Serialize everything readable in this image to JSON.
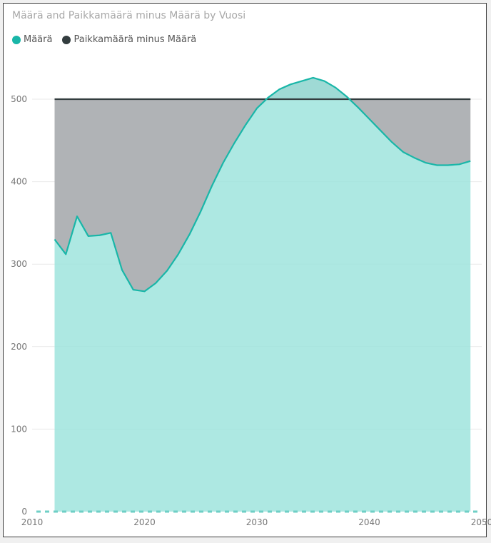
{
  "colors": {
    "maara": "#19b6a8",
    "maara_fill": "#9be3dc",
    "paikka": "#333d3f",
    "gap_fill": "#b0b3b6",
    "grid": "#e9e9e9"
  },
  "chart_data": {
    "type": "area",
    "title": "Määrä and Paikkamäärä minus Määrä by Vuosi",
    "legend_position": "top-left",
    "grid": true,
    "xlim": [
      2010,
      2050
    ],
    "ylim": [
      0,
      500
    ],
    "x_ticks": [
      2010,
      2020,
      2030,
      2040,
      2050
    ],
    "y_ticks": [
      0,
      100,
      200,
      300,
      400,
      500
    ],
    "x": [
      2012,
      2013,
      2014,
      2015,
      2016,
      2017,
      2018,
      2019,
      2020,
      2021,
      2022,
      2023,
      2024,
      2025,
      2026,
      2027,
      2028,
      2029,
      2030,
      2031,
      2032,
      2033,
      2034,
      2035,
      2036,
      2037,
      2038,
      2039,
      2040,
      2041,
      2042,
      2043,
      2044,
      2045,
      2046,
      2047,
      2048,
      2049
    ],
    "series": [
      {
        "name": "Määrä",
        "values": [
          330,
          312,
          358,
          334,
          335,
          338,
          293,
          269,
          267,
          277,
          292,
          312,
          336,
          364,
          395,
          423,
          447,
          469,
          489,
          502,
          512,
          518,
          522,
          526,
          522,
          514,
          503,
          490,
          476,
          462,
          448,
          436,
          429,
          423,
          420,
          420,
          421,
          425
        ]
      },
      {
        "name": "Paikkamäärä minus Määrä",
        "values": [
          500,
          500,
          500,
          500,
          500,
          500,
          500,
          500,
          500,
          500,
          500,
          500,
          500,
          500,
          500,
          500,
          500,
          500,
          500,
          500,
          500,
          500,
          500,
          500,
          500,
          500,
          500,
          500,
          500,
          500,
          500,
          500,
          500,
          500,
          500,
          500,
          500,
          500
        ]
      }
    ]
  }
}
